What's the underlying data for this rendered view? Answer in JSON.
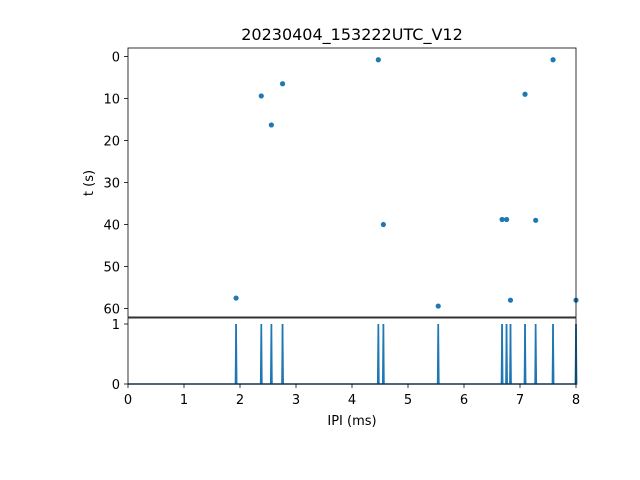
{
  "chart_data": [
    {
      "type": "scatter",
      "title": "20230404_153222UTC_V12",
      "xlabel": "",
      "ylabel": "t (s)",
      "xlim": [
        0,
        8
      ],
      "ylim": [
        62,
        -2
      ],
      "y_inverted": true,
      "x_ticks_shown": false,
      "y_ticks": [
        0,
        10,
        20,
        30,
        40,
        50,
        60
      ],
      "color": "#1f77b4",
      "points": [
        {
          "x": 1.93,
          "y": 57.5
        },
        {
          "x": 2.38,
          "y": 9.4
        },
        {
          "x": 2.56,
          "y": 16.3
        },
        {
          "x": 2.76,
          "y": 6.5
        },
        {
          "x": 4.47,
          "y": 0.8
        },
        {
          "x": 4.56,
          "y": 40.0
        },
        {
          "x": 5.54,
          "y": 59.4
        },
        {
          "x": 6.68,
          "y": 38.8
        },
        {
          "x": 6.76,
          "y": 38.8
        },
        {
          "x": 6.83,
          "y": 58.0
        },
        {
          "x": 7.09,
          "y": 9.0
        },
        {
          "x": 7.28,
          "y": 39.0
        },
        {
          "x": 7.59,
          "y": 0.8
        },
        {
          "x": 8.0,
          "y": 58.0
        }
      ]
    },
    {
      "type": "line",
      "xlabel": "IPI (ms)",
      "ylabel": "",
      "xlim": [
        0,
        8
      ],
      "ylim": [
        0,
        1.1
      ],
      "x_ticks": [
        0,
        1,
        2,
        3,
        4,
        5,
        6,
        7,
        8
      ],
      "y_ticks": [
        0,
        1
      ],
      "color": "#1f77b4",
      "spikes_x": [
        1.93,
        2.38,
        2.56,
        2.76,
        4.47,
        4.56,
        5.54,
        6.68,
        6.76,
        6.83,
        7.09,
        7.28,
        7.59,
        8.0
      ]
    }
  ]
}
